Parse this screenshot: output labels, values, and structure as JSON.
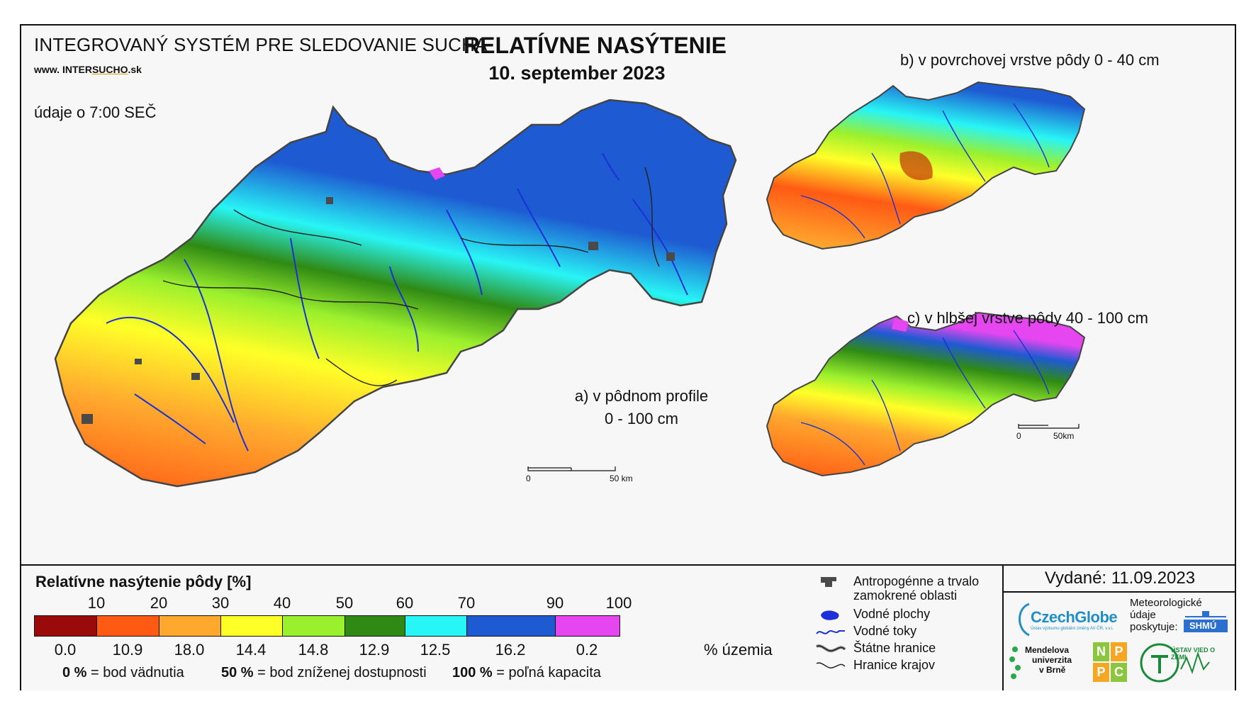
{
  "header": {
    "system_title": "INTEGROVANÝ SYSTÉM PRE SLEDOVANIE SUCHA",
    "website_prefix": "www. ",
    "website_mid_a": "INTER",
    "website_mid_b": "SUCHO",
    "website_suffix": ".sk",
    "time_note": "údaje o 7:00 SEČ",
    "main_title": "RELATÍVNE NASÝTENIE",
    "main_date": "10. september 2023"
  },
  "maps": {
    "a_line1": "a) v pôdnom profile",
    "a_line2": "0 - 100 cm",
    "b_label": "b) v povrchovej vrstve pôdy 0 - 40 cm",
    "c_label": "c) v hlbšej vrstve pôdy 40 - 100 cm",
    "scale_main_zero": "0",
    "scale_main_km": "50 km",
    "scale_small_zero": "0",
    "scale_small_km": "50km"
  },
  "legend": {
    "title": "Relatívne nasýtenie pôdy [%]",
    "ticks": [
      "10",
      "20",
      "30",
      "40",
      "50",
      "60",
      "70",
      "90",
      "100"
    ],
    "classes": [
      {
        "color": "#9b0a0a",
        "pct": "0.0"
      },
      {
        "color": "#ff5a14",
        "pct": "10.9"
      },
      {
        "color": "#ffa82e",
        "pct": "18.0"
      },
      {
        "color": "#ffff28",
        "pct": "14.4"
      },
      {
        "color": "#9bf02d",
        "pct": "14.8"
      },
      {
        "color": "#2f8a14",
        "pct": "12.9"
      },
      {
        "color": "#28f5f5",
        "pct": "12.5"
      },
      {
        "color": "#1e5ad2",
        "pct": "16.2"
      },
      {
        "color": "#e646f0",
        "pct": "0.2"
      }
    ],
    "pct_label": "% územia",
    "expl_0_value": "0 %",
    "expl_0_text": " = bod vädnutia",
    "expl_50_value": "50 %",
    "expl_50_text": " = bod zníženej dostupnosti",
    "expl_100_value": "100 %",
    "expl_100_text": " = poľná kapacita"
  },
  "symbols": {
    "anthropogenic_line1": "Antropogénne a trvalo",
    "anthropogenic_line2": "zamokrené oblasti",
    "water_bodies": "Vodné plochy",
    "water_courses": "Vodné toky",
    "state_border": "Štátne hranice",
    "region_border": "Hranice krajov"
  },
  "issuer": {
    "issued": "Vydané: 11.09.2023",
    "czechglobe": "CzechGlobe",
    "czechglobe_sub": "Ústav výzkumu globální změny AV ČR, v.v.i.",
    "meteo_line1": "Meteorologické",
    "meteo_line2": "údaje",
    "meteo_line3": "poskytuje:",
    "shmu": "SHMÚ",
    "mendel_line1": "Mendelova",
    "mendel_line2": "univerzita",
    "mendel_line3": "v Brně",
    "nppc": [
      "N",
      "P",
      "P",
      "C"
    ],
    "uvz": "ÚSTAV VIED O ZEMI"
  }
}
